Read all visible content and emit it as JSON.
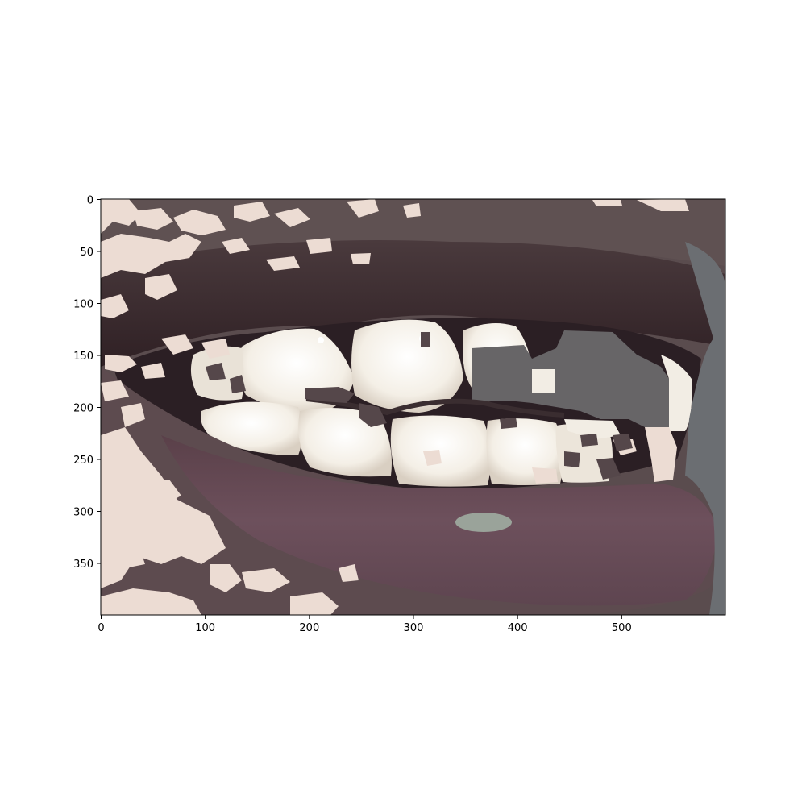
{
  "figure": {
    "type": "image-plot",
    "subject": "segmented close-up of a smiling mouth",
    "x_axis": {
      "ticks": [
        0,
        100,
        200,
        300,
        400,
        500
      ],
      "range": [
        0,
        600
      ]
    },
    "y_axis": {
      "ticks": [
        0,
        50,
        100,
        150,
        200,
        250,
        300,
        350
      ],
      "range": [
        0,
        400
      ]
    }
  },
  "palette": {
    "skin_dark": "#55474a",
    "skin_mid": "#5f5152",
    "lip_upper": "#3e2c31",
    "lip_lower": "#6a4e5a",
    "lip_highlight": "#9aa39a",
    "skin_light": "#ecdcd3",
    "tooth": "#f4efe6",
    "tooth_shadow": "#d9cfc2",
    "gum_gray": "#676567",
    "cheek_gray": "#6b6e72",
    "axes": "#000000"
  }
}
